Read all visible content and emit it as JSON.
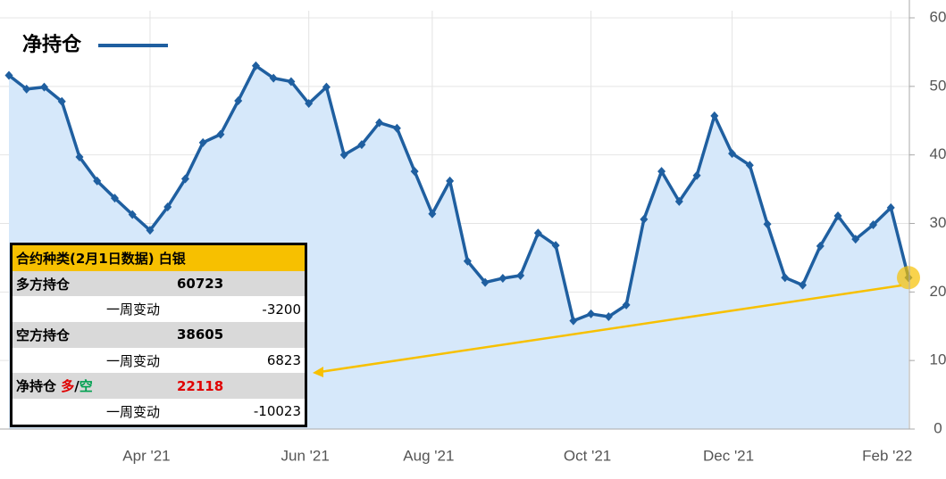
{
  "chart_data": {
    "type": "line",
    "series": [
      {
        "name": "净持仓",
        "color": "#1f5fa0",
        "area_color": "#d6e8fa",
        "values": [
          51.6,
          49.6,
          49.9,
          47.8,
          39.7,
          36.2,
          33.7,
          31.3,
          29.0,
          32.4,
          36.5,
          41.8,
          43.0,
          47.9,
          53.0,
          51.2,
          50.7,
          47.5,
          49.9,
          40.0,
          41.5,
          44.7,
          43.9,
          37.6,
          31.4,
          36.2,
          24.5,
          21.4,
          22.0,
          22.4,
          28.6,
          26.8,
          15.8,
          16.8,
          16.4,
          18.1,
          30.6,
          37.6,
          33.2,
          37.0,
          45.7,
          40.2,
          38.5,
          29.9,
          22.1,
          21.0,
          26.7,
          31.1,
          27.7,
          29.8,
          32.3,
          22.1
        ]
      }
    ],
    "categories": [
      null,
      null,
      null,
      null,
      null,
      null,
      null,
      null,
      "Apr '21",
      null,
      null,
      null,
      null,
      null,
      null,
      null,
      null,
      "Jun '21",
      null,
      null,
      null,
      null,
      null,
      null,
      "Aug '21",
      null,
      null,
      null,
      null,
      null,
      null,
      null,
      null,
      "Oct '21",
      null,
      null,
      null,
      null,
      null,
      null,
      null,
      "Dec '21",
      null,
      null,
      null,
      null,
      null,
      null,
      null,
      null,
      "Feb '22",
      null
    ],
    "ylim": [
      0,
      60
    ],
    "yticks": [
      0,
      10,
      20,
      30,
      40,
      50,
      60
    ],
    "grid": true,
    "y_axis_side": "right",
    "table": {
      "title": "合约种类(2月1日数据) 白银",
      "long_label": "多方持仓",
      "long_value": 60723,
      "change_label_1": "一周变动",
      "long_change": -3200,
      "short_label": "空方持仓",
      "short_value": 38605,
      "change_label_2": "一周变动",
      "short_change": 6823,
      "net_label": "净持仓",
      "net_long": "多",
      "net_sep": "/",
      "net_short": "空",
      "net_value": 22118,
      "change_label_3": "一周变动",
      "net_change": -10023
    }
  }
}
